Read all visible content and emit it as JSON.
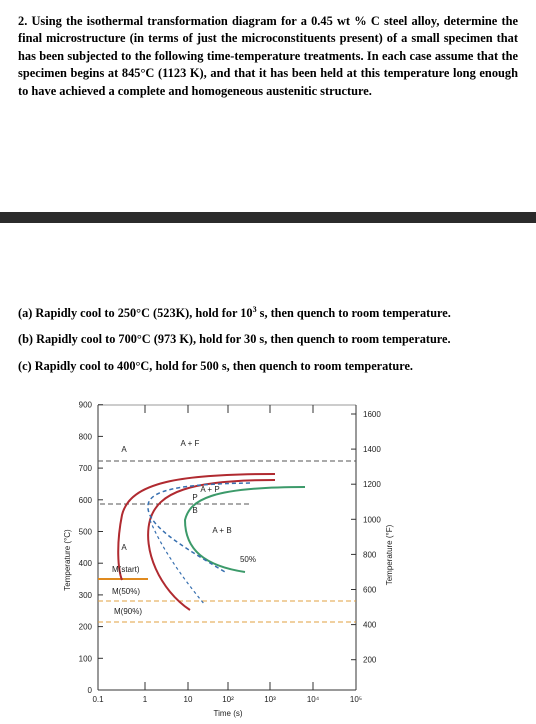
{
  "problem": {
    "text": "2. Using the isothermal transformation diagram for a 0.45 wt % C steel alloy, determine the final microstructure (in terms of just the microconstituents present) of a small specimen that has been subjected to the following time-temperature treatments. In each case assume that the specimen begins at 845°C (1123 K), and that it has been held at this temperature long enough to have achieved a complete and homogeneous austenitic structure."
  },
  "questions": [
    {
      "before": "(a) Rapidly cool to 250°C (523K), hold for 10",
      "sup": "3",
      "after": " s, then quench to room temperature."
    },
    {
      "before": "(b) Rapidly cool to 700°C (973 K), hold for 30 s, then quench to room temperature."
    },
    {
      "before": "(c) Rapidly cool to 400°C, hold for 500 s, then quench to room temperature."
    }
  ],
  "diagram": {
    "y_label": "Temperature (°C)",
    "y2_label": "Temperature (°F)",
    "x_label": "Time (s)",
    "y_ticks": [
      "0",
      "100",
      "200",
      "300",
      "400",
      "500",
      "600",
      "700",
      "800",
      "900"
    ],
    "y2_ticks": [
      "1600",
      "1400",
      "1200",
      "1000",
      "800",
      "600",
      "400",
      "200"
    ],
    "x_ticks": [
      "0.1",
      "1",
      "10",
      "10²",
      "10³",
      "10⁴",
      "10⁵"
    ],
    "regions": [
      "A + F",
      "A",
      "A + P",
      "P",
      "B",
      "A + B",
      "A",
      "50%",
      "M(start)",
      "M(50%)",
      "M(90%)"
    ]
  }
}
